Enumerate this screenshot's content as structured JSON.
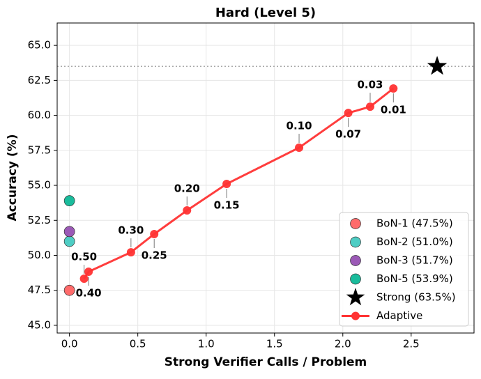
{
  "chart_data": {
    "type": "scatter",
    "title": "Hard (Level 5)",
    "x_label": "Strong Verifier Calls / Problem",
    "y_label": "Accuracy (%)",
    "xlim": [
      -0.09,
      2.96
    ],
    "ylim": [
      44.45,
      66.6
    ],
    "xticks": [
      {
        "value": 0,
        "label": "0.0"
      },
      {
        "value": 0.5,
        "label": "0.5"
      },
      {
        "value": 1,
        "label": "1.0"
      },
      {
        "value": 1.5,
        "label": "1.5"
      },
      {
        "value": 2,
        "label": "2.0"
      },
      {
        "value": 2.5,
        "label": "2.5"
      }
    ],
    "yticks": [
      {
        "value": 45,
        "label": "45.0"
      },
      {
        "value": 47.5,
        "label": "47.5"
      },
      {
        "value": 50,
        "label": "50.0"
      },
      {
        "value": 52.5,
        "label": "52.5"
      },
      {
        "value": 55,
        "label": "55.0"
      },
      {
        "value": 57.5,
        "label": "57.5"
      },
      {
        "value": 60,
        "label": "60.0"
      },
      {
        "value": 62.5,
        "label": "62.5"
      },
      {
        "value": 65,
        "label": "65.0"
      }
    ],
    "grid": true,
    "legend_position": "lower right",
    "reference_line": {
      "value": 63.5,
      "color": "#aaaaaa"
    },
    "series": [
      {
        "name": "BoN-1 (47.5%)",
        "color": "#ff6b6b",
        "marker": "circle",
        "x": [
          0
        ],
        "values": [
          47.5
        ]
      },
      {
        "name": "BoN-2 (51.0%)",
        "color": "#4ecdc4",
        "marker": "circle",
        "x": [
          0
        ],
        "values": [
          51.0
        ]
      },
      {
        "name": "BoN-3 (51.7%)",
        "color": "#9b59b6",
        "marker": "circle",
        "x": [
          0
        ],
        "values": [
          51.7
        ]
      },
      {
        "name": "BoN-5 (53.9%)",
        "color": "#1abc9c",
        "marker": "circle",
        "x": [
          0
        ],
        "values": [
          53.9
        ]
      },
      {
        "name": "Strong (63.5%)",
        "color": "#000000",
        "marker": "star",
        "x": [
          2.69
        ],
        "values": [
          63.5
        ]
      },
      {
        "name": "Adaptive",
        "color": "#ff3333",
        "marker": "line",
        "x": [
          0.107,
          0.14,
          0.45,
          0.62,
          0.86,
          1.15,
          1.68,
          2.04,
          2.2,
          2.37
        ],
        "values": [
          48.33,
          48.83,
          50.22,
          51.52,
          53.21,
          55.1,
          57.69,
          60.17,
          60.62,
          61.92
        ],
        "point_labels": [
          "0.50",
          "0.40",
          "0.30",
          "0.25",
          "0.20",
          "0.15",
          "0.10",
          "0.07",
          "0.03",
          "0.01"
        ]
      }
    ]
  }
}
